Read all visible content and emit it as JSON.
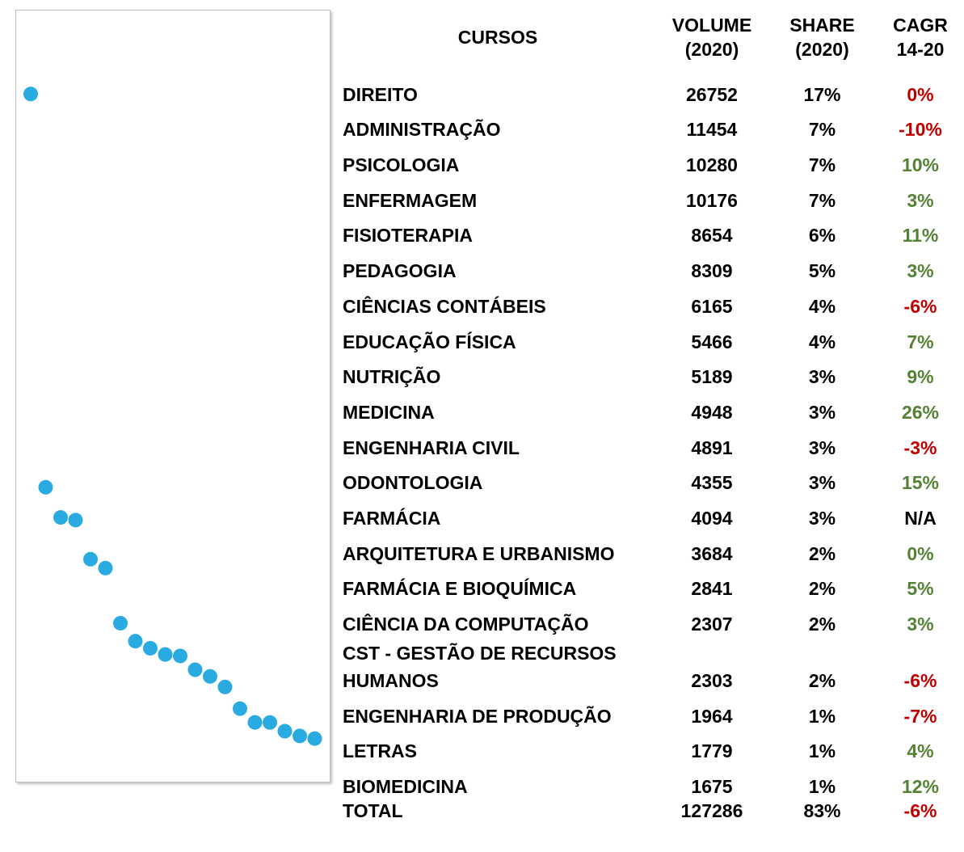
{
  "chart": {
    "type": "scatter",
    "ylim": [
      0,
      30000
    ],
    "color": "#29abe2"
  },
  "table": {
    "columns": [
      "CURSOS",
      "VOLUME (2020)",
      "SHARE (2020)",
      "CAGR 14-20"
    ],
    "rows": [
      {
        "curso": "DIREITO",
        "volume": 26752,
        "share": "17%",
        "cagr": "0%",
        "cagr_color": "#c00000"
      },
      {
        "curso": "ADMINISTRAÇÃO",
        "volume": 11454,
        "share": "7%",
        "cagr": "-10%",
        "cagr_color": "#c00000"
      },
      {
        "curso": "PSICOLOGIA",
        "volume": 10280,
        "share": "7%",
        "cagr": "10%",
        "cagr_color": "#548235"
      },
      {
        "curso": "ENFERMAGEM",
        "volume": 10176,
        "share": "7%",
        "cagr": "3%",
        "cagr_color": "#548235"
      },
      {
        "curso": "FISIOTERAPIA",
        "volume": 8654,
        "share": "6%",
        "cagr": "11%",
        "cagr_color": "#548235"
      },
      {
        "curso": "PEDAGOGIA",
        "volume": 8309,
        "share": "5%",
        "cagr": "3%",
        "cagr_color": "#548235"
      },
      {
        "curso": "CIÊNCIAS CONTÁBEIS",
        "volume": 6165,
        "share": "4%",
        "cagr": "-6%",
        "cagr_color": "#c00000"
      },
      {
        "curso": "EDUCAÇÃO FÍSICA",
        "volume": 5466,
        "share": "4%",
        "cagr": "7%",
        "cagr_color": "#548235"
      },
      {
        "curso": "NUTRIÇÃO",
        "volume": 5189,
        "share": "3%",
        "cagr": "9%",
        "cagr_color": "#548235"
      },
      {
        "curso": "MEDICINA",
        "volume": 4948,
        "share": "3%",
        "cagr": "26%",
        "cagr_color": "#548235"
      },
      {
        "curso": "ENGENHARIA CIVIL",
        "volume": 4891,
        "share": "3%",
        "cagr": "-3%",
        "cagr_color": "#c00000"
      },
      {
        "curso": "ODONTOLOGIA",
        "volume": 4355,
        "share": "3%",
        "cagr": "15%",
        "cagr_color": "#548235"
      },
      {
        "curso": "FARMÁCIA",
        "volume": 4094,
        "share": "3%",
        "cagr": "N/A",
        "cagr_color": "#000000"
      },
      {
        "curso": "ARQUITETURA E URBANISMO",
        "volume": 3684,
        "share": "2%",
        "cagr": "0%",
        "cagr_color": "#548235"
      },
      {
        "curso": "FARMÁCIA E BIOQUÍMICA",
        "volume": 2841,
        "share": "2%",
        "cagr": "5%",
        "cagr_color": "#548235"
      },
      {
        "curso": "CIÊNCIA DA COMPUTAÇÃO",
        "volume": 2307,
        "share": "2%",
        "cagr": "3%",
        "cagr_color": "#548235"
      },
      {
        "curso": "CST - GESTÃO DE RECURSOS HUMANOS",
        "volume": 2303,
        "share": "2%",
        "cagr": "-6%",
        "cagr_color": "#c00000"
      },
      {
        "curso": "ENGENHARIA DE PRODUÇÃO",
        "volume": 1964,
        "share": "1%",
        "cagr": "-7%",
        "cagr_color": "#c00000"
      },
      {
        "curso": "LETRAS",
        "volume": 1779,
        "share": "1%",
        "cagr": "4%",
        "cagr_color": "#548235"
      },
      {
        "curso": "BIOMEDICINA",
        "volume": 1675,
        "share": "1%",
        "cagr": "12%",
        "cagr_color": "#548235"
      }
    ],
    "total": {
      "curso": "TOTAL",
      "volume": 127286,
      "share": "83%",
      "cagr": "-6%",
      "cagr_color": "#c00000"
    }
  }
}
